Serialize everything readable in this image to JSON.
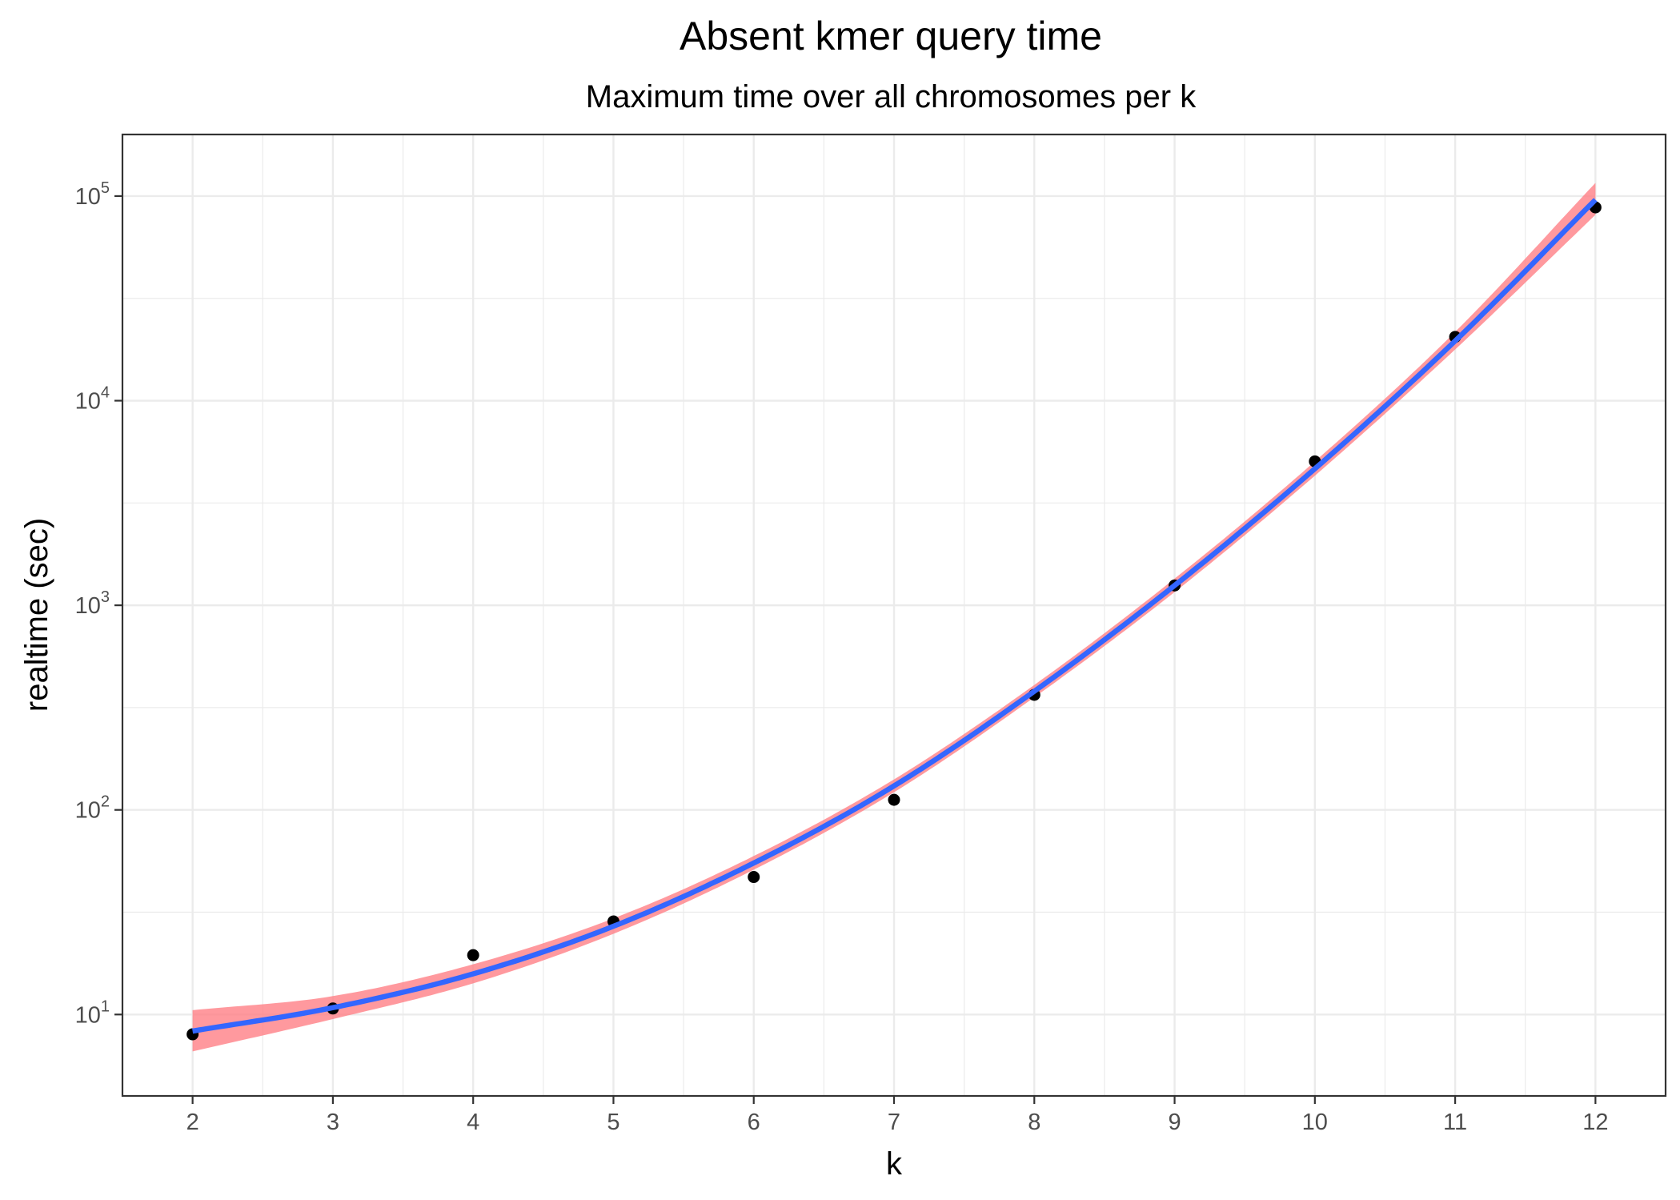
{
  "chart_data": {
    "type": "scatter",
    "title": "Absent kmer query time",
    "subtitle": "Maximum time over all chromosomes per k",
    "xlabel": "k",
    "ylabel": "realtime (sec)",
    "xlim": [
      1.5,
      12.5
    ],
    "ylim": [
      4,
      200000
    ],
    "y_scale": "log10",
    "grid": true,
    "x_ticks": [
      "2",
      "3",
      "4",
      "5",
      "6",
      "7",
      "8",
      "9",
      "10",
      "11",
      "12"
    ],
    "y_ticks": [
      {
        "base": "10",
        "exp": "1",
        "value": 10
      },
      {
        "base": "10",
        "exp": "2",
        "value": 100
      },
      {
        "base": "10",
        "exp": "3",
        "value": 1000
      },
      {
        "base": "10",
        "exp": "4",
        "value": 10000
      },
      {
        "base": "10",
        "exp": "5",
        "value": 100000
      }
    ],
    "points": {
      "x": [
        2,
        3,
        4,
        5,
        6,
        7,
        8,
        9,
        10,
        11,
        12
      ],
      "y": [
        8,
        10.7,
        19.5,
        28.5,
        47,
        112,
        365,
        1250,
        5050,
        20500,
        88000
      ],
      "color": "#000000"
    },
    "fit": {
      "x": [
        2,
        3,
        4,
        5,
        6,
        7,
        8,
        9,
        10,
        11,
        12
      ],
      "y": [
        8.3,
        10.8,
        15.8,
        27,
        55,
        131,
        380,
        1250,
        4650,
        19600,
        96000
      ],
      "ci_lower": [
        6.6,
        9.5,
        14.2,
        24.8,
        51,
        122,
        355,
        1160,
        4300,
        17800,
        81000
      ],
      "ci_upper": [
        10.5,
        12.3,
        17.6,
        29.5,
        59.5,
        141,
        408,
        1350,
        5050,
        21700,
        116000
      ],
      "line_color": "#3366ff",
      "band_color": "#ff7f86"
    }
  }
}
